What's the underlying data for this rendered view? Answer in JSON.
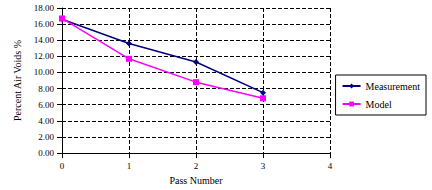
{
  "chart_data": {
    "type": "line",
    "xlabel": "Pass Number",
    "ylabel": "Percent Air Voids %",
    "x": [
      0,
      1,
      2,
      3
    ],
    "series": [
      {
        "name": "Measurement",
        "color": "#000080",
        "marker": "diamond",
        "values": [
          16.6,
          13.6,
          11.3,
          7.5
        ]
      },
      {
        "name": "Model",
        "color": "#ff00ff",
        "marker": "square",
        "values": [
          16.7,
          11.7,
          8.8,
          6.8
        ]
      }
    ],
    "xlim": [
      0,
      4
    ],
    "xticks": [
      0,
      1,
      2,
      3,
      4
    ],
    "ylim": [
      0,
      18
    ],
    "yticks": [
      {
        "value": 0,
        "label": "0.00"
      },
      {
        "value": 2,
        "label": "2.00"
      },
      {
        "value": 4,
        "label": "4.00"
      },
      {
        "value": 6,
        "label": "6.00"
      },
      {
        "value": 8,
        "label": "8.00"
      },
      {
        "value": 10,
        "label": "10.00"
      },
      {
        "value": 12,
        "label": "12.00"
      },
      {
        "value": 14,
        "label": "14.00"
      },
      {
        "value": 16,
        "label": "16.00"
      },
      {
        "value": 18,
        "label": "18.00"
      }
    ],
    "grid": true,
    "legend": "right"
  }
}
